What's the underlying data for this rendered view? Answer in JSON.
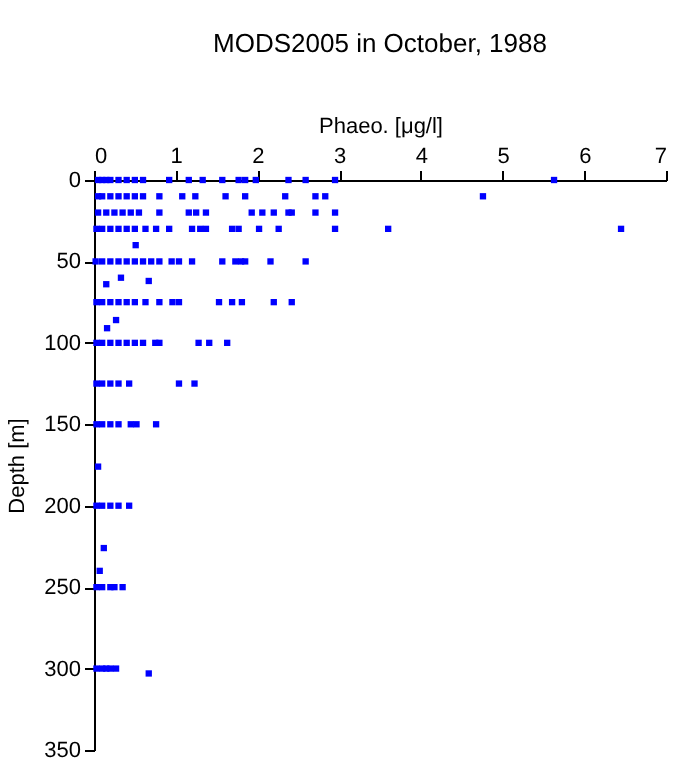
{
  "chart_data": {
    "type": "scatter",
    "title": "MODS2005 in October, 1988",
    "xlabel": "Phaeo. [μg/l]",
    "ylabel": "Depth [m]",
    "x": [
      0.05,
      0.1,
      0.15,
      0.2,
      0.3,
      0.4,
      0.5,
      0.6,
      0.92,
      1.16,
      1.33,
      1.57,
      1.77,
      1.85,
      1.98,
      2.38,
      2.59,
      2.95,
      5.63,
      0.05,
      0.1,
      0.2,
      0.3,
      0.4,
      0.5,
      0.6,
      0.8,
      1.08,
      1.24,
      1.61,
      1.85,
      2.34,
      2.71,
      2.83,
      4.76,
      0.05,
      0.15,
      0.25,
      0.35,
      0.45,
      0.55,
      0.8,
      1.16,
      1.25,
      1.37,
      1.93,
      2.06,
      2.2,
      2.38,
      2.42,
      2.71,
      2.95,
      0.03,
      0.1,
      0.2,
      0.3,
      0.4,
      0.5,
      0.63,
      0.76,
      0.92,
      1.2,
      1.3,
      1.37,
      1.69,
      1.77,
      2.02,
      2.26,
      2.95,
      3.6,
      6.45,
      0.51,
      0.02,
      0.1,
      0.2,
      0.3,
      0.4,
      0.5,
      0.6,
      0.7,
      0.8,
      0.95,
      1.04,
      1.2,
      1.57,
      1.73,
      1.8,
      1.85,
      2.16,
      2.59,
      0.33,
      0.15,
      0.67,
      0.03,
      0.1,
      0.2,
      0.3,
      0.4,
      0.5,
      0.63,
      0.8,
      0.96,
      1.04,
      1.53,
      1.69,
      1.81,
      2.2,
      2.42,
      0.27,
      0.16,
      0.03,
      0.1,
      0.2,
      0.3,
      0.4,
      0.5,
      0.6,
      0.75,
      0.8,
      1.28,
      1.41,
      1.63,
      0.03,
      0.1,
      0.2,
      0.3,
      0.43,
      1.04,
      1.23,
      0.03,
      0.1,
      0.2,
      0.3,
      0.45,
      0.52,
      0.76,
      0.05,
      0.03,
      0.1,
      0.2,
      0.3,
      0.43,
      0.12,
      0.07,
      0.03,
      0.1,
      0.2,
      0.25,
      0.35,
      0.03,
      0.1,
      0.15,
      0.2,
      0.27,
      0.67
    ],
    "series": [
      {
        "color": "#0000ff",
        "values": [
          0,
          0,
          0,
          0,
          0,
          0,
          0,
          0,
          0,
          0,
          0,
          0,
          0,
          0,
          0,
          0,
          0,
          0,
          0,
          10,
          10,
          10,
          10,
          10,
          10,
          10,
          10,
          10,
          10,
          10,
          10,
          10,
          10,
          10,
          10,
          20,
          20,
          20,
          20,
          20,
          20,
          20,
          20,
          20,
          20,
          20,
          20,
          20,
          20,
          20,
          20,
          20,
          30,
          30,
          30,
          30,
          30,
          30,
          30,
          30,
          30,
          30,
          30,
          30,
          30,
          30,
          30,
          30,
          30,
          30,
          30,
          40,
          50,
          50,
          50,
          50,
          50,
          50,
          50,
          50,
          50,
          50,
          50,
          50,
          50,
          50,
          50,
          50,
          50,
          50,
          60,
          64,
          62,
          75,
          75,
          75,
          75,
          75,
          75,
          75,
          75,
          75,
          75,
          75,
          75,
          75,
          75,
          75,
          86,
          91,
          100,
          100,
          100,
          100,
          100,
          100,
          100,
          100,
          100,
          100,
          100,
          100,
          125,
          125,
          125,
          125,
          125,
          125,
          125,
          150,
          150,
          150,
          150,
          150,
          150,
          150,
          176,
          200,
          200,
          200,
          200,
          200,
          226,
          240,
          250,
          250,
          250,
          250,
          250,
          300,
          300,
          300,
          300,
          300,
          303
        ]
      }
    ],
    "xlim": [
      0,
      7
    ],
    "xticks": [
      0,
      1,
      2,
      3,
      4,
      5,
      6,
      7
    ],
    "ylim": [
      350,
      0
    ],
    "yticks": [
      0,
      50,
      100,
      150,
      200,
      250,
      300,
      350
    ],
    "marker": "square",
    "grid": false
  }
}
